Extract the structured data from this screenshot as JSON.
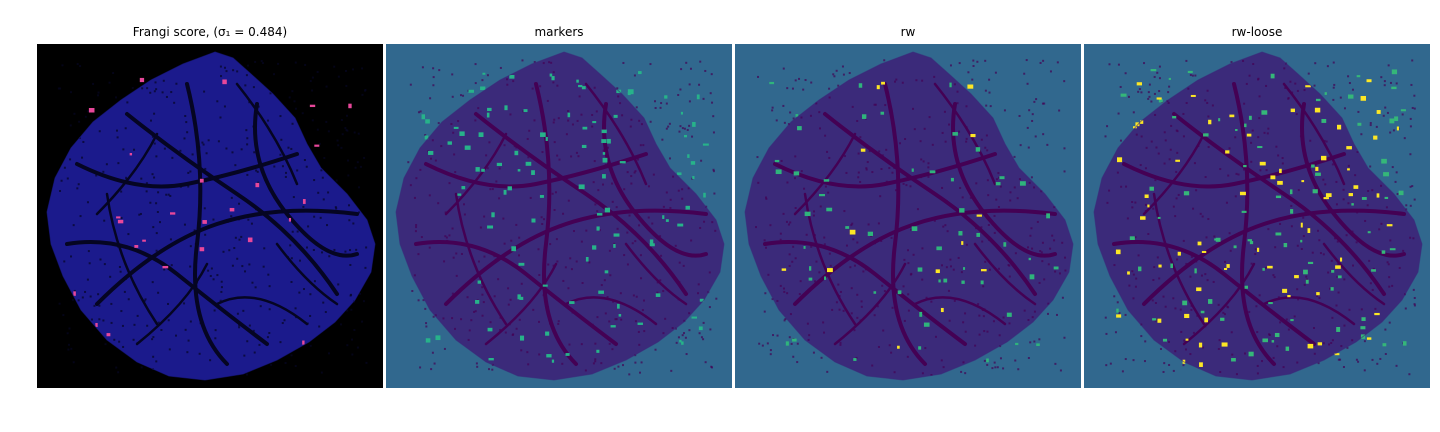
{
  "figure": {
    "panels": [
      {
        "id": "frangi",
        "title": "Frangi score, (σ₁ = 0.484)",
        "background": "#000000",
        "tissue": "#1b1a8c",
        "vessel": "#050522",
        "highlight": "#e8479a",
        "highlight2": "#f6b74a"
      },
      {
        "id": "markers",
        "title": "markers",
        "background": "#31688e",
        "tissue": "#3b2a7a",
        "vessel": "#440154",
        "highlight": "#27b38a",
        "highlight2": "#35b779"
      },
      {
        "id": "rw",
        "title": "rw",
        "background": "#31688e",
        "tissue": "#3b2a7a",
        "vessel": "#440154",
        "highlight": "#2fb47c",
        "highlight2": "#fde725"
      },
      {
        "id": "rw-loose",
        "title": "rw-loose",
        "background": "#31688e",
        "tissue": "#3b2a7a",
        "vessel": "#440154",
        "highlight": "#35b779",
        "highlight2": "#fde725"
      }
    ]
  }
}
